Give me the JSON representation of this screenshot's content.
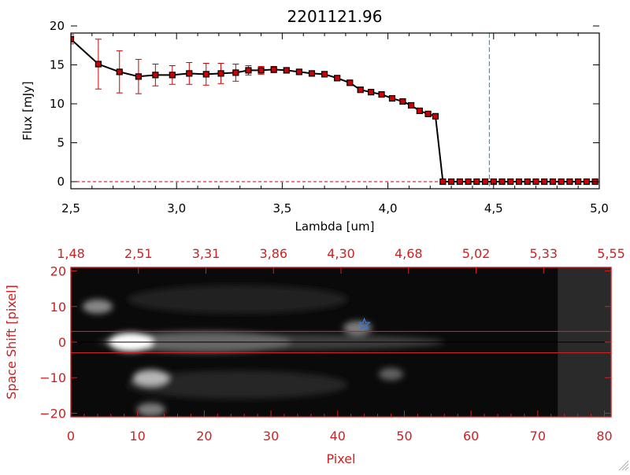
{
  "title": "2201121.96",
  "chart_data": [
    {
      "type": "line",
      "ylabel": "Flux [mJy]",
      "xlabel": "Lambda [um]",
      "xlim": [
        2.5,
        5.0
      ],
      "ylim": [
        0,
        20
      ],
      "x_ticks": [
        "2.5",
        "3.0",
        "3.5",
        "4.0",
        "4.5",
        "5.0"
      ],
      "y_ticks": [
        "0",
        "5",
        "10",
        "15",
        "20"
      ],
      "reference_line_x": 4.48,
      "colors": {
        "line": "#000000",
        "marker": "#cc0000",
        "errorbar": "#cc0000",
        "reference": "#2aa0c8",
        "baseline": "#cc0000"
      },
      "series": [
        {
          "x": [
            2.5,
            2.63,
            2.73,
            2.82,
            2.9,
            2.98,
            3.06,
            3.14,
            3.21,
            3.28,
            3.34,
            3.4,
            3.46,
            3.52,
            3.58,
            3.64,
            3.7,
            3.76,
            3.82,
            3.87,
            3.92,
            3.97,
            4.02,
            4.07,
            4.11,
            4.15,
            4.19,
            4.225,
            4.26,
            4.3,
            4.34,
            4.38,
            4.42,
            4.46,
            4.5,
            4.54,
            4.58,
            4.62,
            4.66,
            4.7,
            4.74,
            4.78,
            4.82,
            4.86,
            4.9,
            4.94,
            4.98
          ],
          "y": [
            18.3,
            15.1,
            14.1,
            13.5,
            13.7,
            13.7,
            13.9,
            13.8,
            13.9,
            14.0,
            14.3,
            14.3,
            14.4,
            14.3,
            14.1,
            13.9,
            13.8,
            13.3,
            12.7,
            11.8,
            11.5,
            11.2,
            10.7,
            10.3,
            9.8,
            9.1,
            8.7,
            8.4,
            0.0,
            0.0,
            0.0,
            0.0,
            0.0,
            0.0,
            0.0,
            0.0,
            0.0,
            0.0,
            0.0,
            0.0,
            0.0,
            0.0,
            0.0,
            0.0,
            0.0,
            0.0,
            0.0
          ],
          "yerr": [
            0.6,
            3.2,
            2.7,
            2.2,
            1.4,
            1.2,
            1.4,
            1.4,
            1.3,
            1.1,
            0.6,
            0.5,
            0.4,
            0.3,
            0.3,
            0.3,
            0.3,
            0.3,
            0.3,
            0.3,
            0.3,
            0.3,
            0.3,
            0.3,
            0.3,
            0.3,
            0.3,
            0.3,
            0,
            0,
            0,
            0,
            0,
            0,
            0,
            0,
            0,
            0,
            0,
            0,
            0,
            0,
            0,
            0,
            0,
            0,
            0
          ]
        }
      ]
    },
    {
      "type": "heatmap",
      "xlabel": "Pixel",
      "ylabel": "Space Shift [pixel]",
      "xlim": [
        0,
        81
      ],
      "ylim": [
        -21,
        21
      ],
      "x_ticks": [
        "0",
        "10",
        "20",
        "30",
        "40",
        "50",
        "60",
        "70",
        "80"
      ],
      "y_ticks": [
        "-20",
        "-10",
        "0",
        "10",
        "20"
      ],
      "top_axis_ticks": [
        "1.48",
        "2.51",
        "3.31",
        "3.86",
        "4.30",
        "4.68",
        "5.02",
        "5.33",
        "5.55"
      ],
      "aperture_lines_y": [
        3,
        -3
      ],
      "center_line_y": 0,
      "source_marker": {
        "x": 44,
        "y": 5,
        "symbol": "star"
      },
      "blobs": [
        {
          "x": 9,
          "y": 0,
          "intensity": 1.0
        },
        {
          "x": 12,
          "y": -10,
          "intensity": 0.7
        },
        {
          "x": 4,
          "y": 10,
          "intensity": 0.5
        },
        {
          "x": 43,
          "y": 4,
          "intensity": 0.45
        },
        {
          "x": 12,
          "y": -19,
          "intensity": 0.45
        },
        {
          "x": 48,
          "y": -9,
          "intensity": 0.3
        }
      ],
      "colors": {
        "axis": "#cc2222",
        "aperture": "#cc2222",
        "star": "#3377dd",
        "background": "#0a0a0a"
      }
    }
  ]
}
